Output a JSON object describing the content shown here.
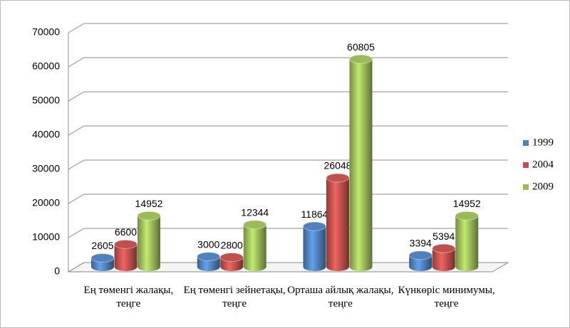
{
  "chart_data": {
    "type": "bar3d",
    "categories": [
      "Ең төменгі жалақы, теңге",
      "Ең төменгі зейнетақы, теңге",
      "Орташа айлық жалақы, теңге",
      "Күнкөріс минимумы, теңге"
    ],
    "series": [
      {
        "name": "1999",
        "color": "#4f81bd",
        "values": [
          2605,
          3000,
          11864,
          3394
        ]
      },
      {
        "name": "2004",
        "color": "#c0504d",
        "values": [
          6600,
          2800,
          26048,
          5394
        ]
      },
      {
        "name": "2009",
        "color": "#9bbb59",
        "values": [
          14952,
          12344,
          60805,
          14952
        ]
      }
    ],
    "ylim": [
      0,
      70000
    ],
    "yticks": [
      0,
      10000,
      20000,
      30000,
      40000,
      50000,
      60000,
      70000
    ],
    "grid": true,
    "legend": "right"
  }
}
